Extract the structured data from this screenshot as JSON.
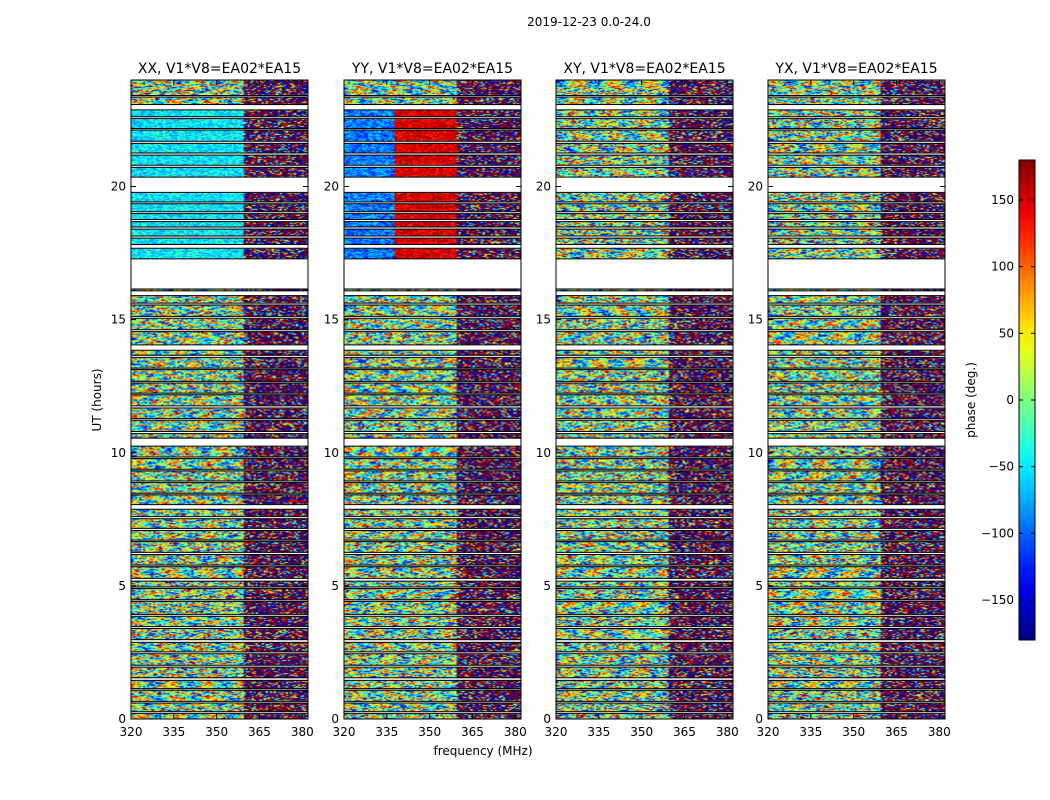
{
  "figure": {
    "suptitle": "2019-12-23 0.0-24.0"
  },
  "chart_data": {
    "type": "heatmap",
    "xlabel": "frequency (MHz)",
    "ylabel": "UT (hours)",
    "xlim": [
      320,
      382
    ],
    "ylim": [
      0,
      24
    ],
    "xticks": [
      320,
      335,
      350,
      365,
      380
    ],
    "yticks": [
      0,
      5,
      10,
      15,
      20
    ],
    "panels": [
      {
        "title": "XX, V1*V8=EA02*EA15",
        "style": "xx"
      },
      {
        "title": "YY, V1*V8=EA02*EA15",
        "style": "yy"
      },
      {
        "title": "XY, V1*V8=EA02*EA15",
        "style": "noise"
      },
      {
        "title": "YX, V1*V8=EA02*EA15",
        "style": "noise"
      }
    ],
    "colorbar": {
      "label": "phase (deg.)",
      "range": [
        -180,
        180
      ],
      "ticks": [
        150,
        100,
        50,
        0,
        -50,
        -100,
        -150
      ],
      "tick_labels": [
        "150",
        "100",
        "50",
        "0",
        "−50",
        "−100",
        "−150"
      ],
      "colormap": "jet"
    },
    "data_gaps_hours": [
      [
        0.2,
        0.27
      ],
      [
        0.6,
        0.66
      ],
      [
        1.08,
        1.14
      ],
      [
        1.45,
        1.55
      ],
      [
        1.95,
        2.02
      ],
      [
        2.45,
        2.52
      ],
      [
        2.88,
        2.98
      ],
      [
        3.4,
        3.47
      ],
      [
        3.86,
        3.93
      ],
      [
        4.42,
        4.48
      ],
      [
        4.9,
        4.96
      ],
      [
        5.18,
        5.28
      ],
      [
        5.72,
        5.78
      ],
      [
        6.18,
        6.26
      ],
      [
        6.66,
        6.72
      ],
      [
        7.08,
        7.16
      ],
      [
        7.52,
        7.6
      ],
      [
        7.88,
        8.05
      ],
      [
        8.42,
        8.48
      ],
      [
        8.88,
        8.94
      ],
      [
        9.32,
        9.38
      ],
      [
        9.78,
        9.84
      ],
      [
        10.25,
        10.55
      ],
      [
        10.72,
        10.8
      ],
      [
        11.22,
        11.28
      ],
      [
        11.68,
        11.76
      ],
      [
        12.18,
        12.24
      ],
      [
        12.62,
        12.68
      ],
      [
        13.12,
        13.18
      ],
      [
        13.58,
        13.66
      ],
      [
        13.85,
        14.05
      ],
      [
        14.55,
        14.62
      ],
      [
        15.05,
        15.12
      ],
      [
        15.55,
        15.62
      ],
      [
        15.9,
        16.08
      ],
      [
        16.15,
        17.28
      ],
      [
        17.68,
        17.82
      ],
      [
        18.06,
        18.14
      ],
      [
        18.4,
        18.48
      ],
      [
        18.68,
        18.76
      ],
      [
        18.98,
        19.05
      ],
      [
        19.35,
        19.42
      ],
      [
        19.78,
        20.35
      ],
      [
        20.72,
        20.8
      ],
      [
        21.18,
        21.26
      ],
      [
        21.62,
        21.7
      ],
      [
        22.12,
        22.18
      ],
      [
        22.55,
        22.62
      ],
      [
        22.88,
        23.08
      ],
      [
        23.36,
        23.42
      ]
    ]
  }
}
